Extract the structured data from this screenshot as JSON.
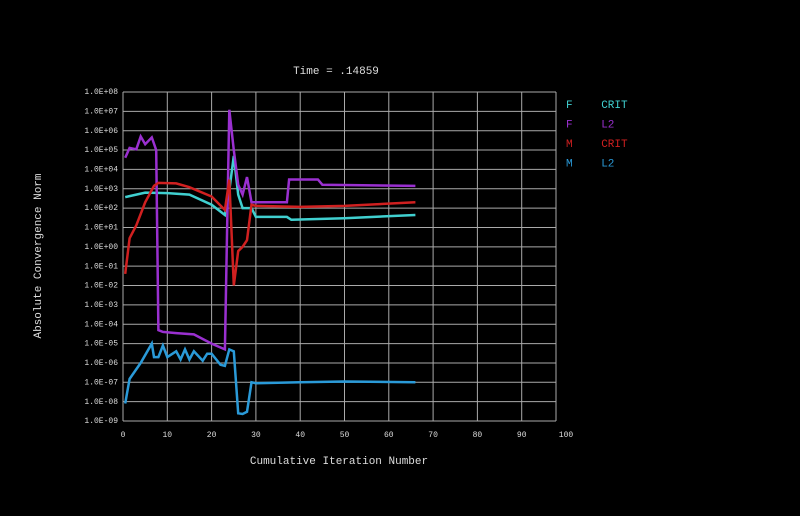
{
  "chart_data": {
    "type": "line",
    "title": "Time = .14859",
    "x_label": "Cumulative Iteration Number",
    "y_label": "Absolute Convergence Norm",
    "log_y": true,
    "grid": true,
    "xlim": [
      0,
      100
    ],
    "xticks": [
      0,
      10,
      20,
      30,
      40,
      50,
      60,
      70,
      80,
      90,
      100
    ],
    "ylim": [
      1e-09,
      100000000.0
    ],
    "yticks": [
      {
        "value": 1e-09,
        "label": "1.0E-09"
      },
      {
        "value": 1e-08,
        "label": "1.0E-08"
      },
      {
        "value": 1e-07,
        "label": "1.0E-07"
      },
      {
        "value": 1e-06,
        "label": "1.0E-06"
      },
      {
        "value": 1e-05,
        "label": "1.0E-05"
      },
      {
        "value": 0.0001,
        "label": "1.0E-04"
      },
      {
        "value": 0.001,
        "label": "1.0E-03"
      },
      {
        "value": 0.01,
        "label": "1.0E-02"
      },
      {
        "value": 0.1,
        "label": "1.0E-01"
      },
      {
        "value": 1,
        "label": "1.0E+00"
      },
      {
        "value": 10,
        "label": "1.0E+01"
      },
      {
        "value": 100,
        "label": "1.0E+02"
      },
      {
        "value": 1000,
        "label": "1.0E+03"
      },
      {
        "value": 10000,
        "label": "1.0E+04"
      },
      {
        "value": 100000,
        "label": "1.0E+05"
      },
      {
        "value": 1000000,
        "label": "1.0E+06"
      },
      {
        "value": 10000000,
        "label": "1.0E+07"
      },
      {
        "value": 100000000,
        "label": "1.0E+08"
      }
    ],
    "series": [
      {
        "name": "F CRIT",
        "color": "#40d0d0",
        "x": [
          0.5,
          5,
          10,
          15,
          20,
          23,
          24,
          25,
          26,
          27,
          29,
          30,
          37,
          38,
          50,
          66
        ],
        "values": [
          370,
          630,
          600,
          500,
          150,
          44,
          800,
          50000,
          500,
          100,
          100,
          35,
          35,
          25,
          30,
          44
        ]
      },
      {
        "name": "F L2",
        "color": "#9a30d0",
        "x": [
          0.5,
          1.5,
          3,
          4,
          5,
          6.5,
          7.5,
          8,
          9,
          12,
          16,
          20,
          23,
          24,
          25,
          26,
          27,
          28,
          29,
          36,
          37,
          37.5,
          44,
          45,
          66
        ],
        "values": [
          40000,
          130000,
          110000,
          500000,
          200000,
          450000,
          100000,
          5e-05,
          4e-05,
          3.5e-05,
          3e-05,
          1e-05,
          5e-06,
          12000000,
          100000,
          1600,
          500,
          4000,
          200,
          200,
          200,
          3000,
          3000,
          1600,
          1400
        ]
      },
      {
        "name": "M CRIT",
        "color": "#d02020",
        "x": [
          0.5,
          1.5,
          3,
          5,
          7,
          8,
          12,
          15,
          20,
          23,
          24,
          25,
          26,
          27,
          28,
          29,
          30,
          40,
          50,
          66
        ],
        "values": [
          0.04,
          2.8,
          13,
          200,
          1400,
          2000,
          1900,
          1200,
          400,
          80,
          3000,
          0.01,
          0.6,
          1,
          2.2,
          150,
          130,
          115,
          130,
          200
        ]
      },
      {
        "name": "M L2",
        "color": "#2a9ad8",
        "x": [
          0.5,
          1.5,
          4,
          6.5,
          7,
          8,
          9,
          10,
          12,
          13,
          14,
          15,
          16,
          18,
          19,
          20,
          22,
          23,
          24,
          25,
          26,
          27,
          28,
          29,
          30,
          40,
          50,
          66
        ],
        "values": [
          8e-09,
          1.5e-07,
          1e-06,
          1e-05,
          2e-06,
          2e-06,
          8e-06,
          2e-06,
          4e-06,
          1.5e-06,
          5e-06,
          1.5e-06,
          4e-06,
          1.3e-06,
          3e-06,
          3e-06,
          8e-07,
          7e-07,
          5e-06,
          4e-06,
          2.5e-09,
          2.3e-09,
          3e-09,
          1e-07,
          9e-08,
          1e-07,
          1.1e-07,
          1e-07
        ]
      }
    ]
  }
}
